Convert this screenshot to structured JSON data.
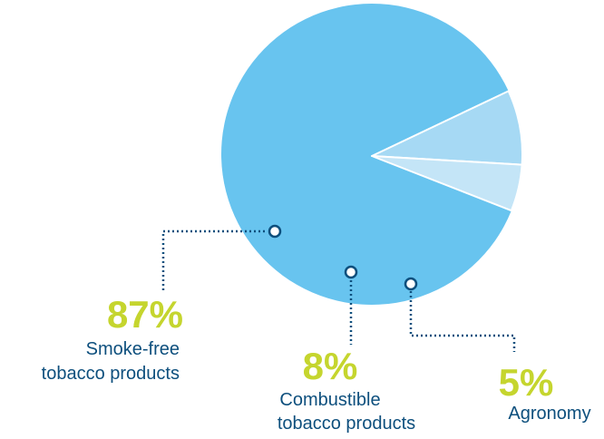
{
  "chart_data": {
    "type": "pie",
    "categories": [
      "Smoke-free tobacco products",
      "Combustible tobacco products",
      "Agronomy"
    ],
    "values": [
      87,
      8,
      5
    ],
    "slices": [
      {
        "value": 87,
        "value_label": "87%",
        "label_lines": [
          "Smoke-free",
          "tobacco products"
        ],
        "color": "#68c4ef"
      },
      {
        "value": 8,
        "value_label": "8%",
        "label_lines": [
          "Combustible",
          "tobacco products"
        ],
        "color": "#a6d9f4"
      },
      {
        "value": 5,
        "value_label": "5%",
        "label_lines": [
          "Agronomy"
        ],
        "color": "#c4e5f7"
      }
    ],
    "legend": false,
    "grid": false
  },
  "colors": {
    "percent_text": "#c5d52e",
    "label_text": "#0d4f7d",
    "leader_line": "#0d4f7d",
    "background": "#ffffff"
  }
}
